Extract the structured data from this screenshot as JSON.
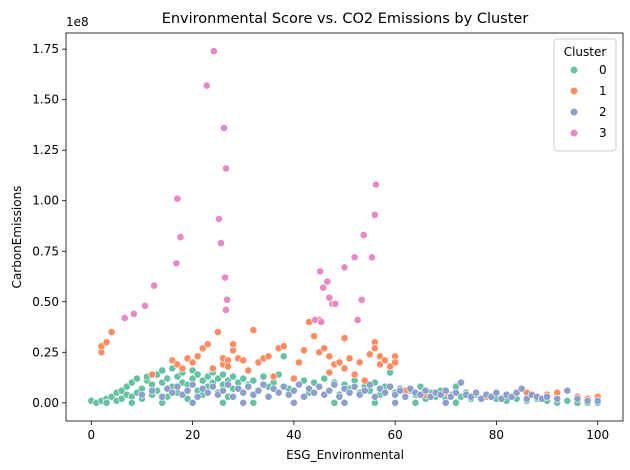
{
  "chart_data": {
    "type": "scatter",
    "title": "Environmental Score vs. CO2 Emissions by Cluster",
    "xlabel": "ESG_Environmental",
    "ylabel": "CarbonEmissions",
    "y_scale_label": "1e8",
    "xlim": [
      -5,
      105
    ],
    "ylim": [
      -0.09,
      1.83
    ],
    "y_multiplier": 100000000,
    "x_ticks": [
      0,
      20,
      40,
      60,
      80,
      100
    ],
    "x_tick_labels": [
      "0",
      "20",
      "40",
      "60",
      "80",
      "100"
    ],
    "y_ticks": [
      0.0,
      0.25,
      0.5,
      0.75,
      1.0,
      1.25,
      1.5,
      1.75
    ],
    "y_tick_labels": [
      "0.00",
      "0.25",
      "0.50",
      "0.75",
      "1.00",
      "1.25",
      "1.50",
      "1.75"
    ],
    "grid": false,
    "legend": {
      "title": "Cluster",
      "placement": "top-right"
    },
    "series": [
      {
        "name": "0",
        "color": "#66c2a5",
        "points": [
          [
            0,
            0.01
          ],
          [
            1,
            0.0
          ],
          [
            2,
            0.01
          ],
          [
            3,
            0.02
          ],
          [
            3,
            0.0
          ],
          [
            4,
            0.03
          ],
          [
            5,
            0.01
          ],
          [
            5,
            0.05
          ],
          [
            6,
            0.02
          ],
          [
            6,
            0.06
          ],
          [
            7,
            0.04
          ],
          [
            7,
            0.08
          ],
          [
            8,
            0.03
          ],
          [
            8,
            0.1
          ],
          [
            9,
            0.05
          ],
          [
            9,
            0.12
          ],
          [
            10,
            0.02
          ],
          [
            10,
            0.07
          ],
          [
            11,
            0.11
          ],
          [
            11,
            0.13
          ],
          [
            12,
            0.04
          ],
          [
            12,
            0.09
          ],
          [
            13,
            0.14
          ],
          [
            13,
            0.06
          ],
          [
            14,
            0.1
          ],
          [
            14,
            0.16
          ],
          [
            15,
            0.03
          ],
          [
            15,
            0.12
          ],
          [
            16,
            0.08
          ],
          [
            16,
            0.17
          ],
          [
            17,
            0.05
          ],
          [
            17,
            0.13
          ],
          [
            18,
            0.1
          ],
          [
            18,
            0.15
          ],
          [
            19,
            0.02
          ],
          [
            19,
            0.09
          ],
          [
            20,
            0.12
          ],
          [
            20,
            0.16
          ],
          [
            21,
            0.06
          ],
          [
            21,
            0.14
          ],
          [
            22,
            0.11
          ],
          [
            22,
            0.04
          ],
          [
            23,
            0.13
          ],
          [
            23,
            0.08
          ],
          [
            24,
            0.15
          ],
          [
            24,
            0.1
          ],
          [
            25,
            0.05
          ],
          [
            25,
            0.12
          ],
          [
            26,
            0.14
          ],
          [
            26,
            0.09
          ],
          [
            27,
            0.11
          ],
          [
            27,
            0.03
          ],
          [
            28,
            0.13
          ],
          [
            28,
            0.07
          ],
          [
            29,
            0.1
          ],
          [
            30,
            0.12
          ],
          [
            30,
            0.05
          ],
          [
            31,
            0.09
          ],
          [
            32,
            0.11
          ],
          [
            33,
            0.06
          ],
          [
            34,
            0.13
          ],
          [
            35,
            0.08
          ],
          [
            36,
            0.1
          ],
          [
            37,
            0.14
          ],
          [
            38,
            0.23
          ],
          [
            39,
            0.07
          ],
          [
            40,
            0.12
          ],
          [
            41,
            0.09
          ],
          [
            42,
            0.11
          ],
          [
            43,
            0.05
          ],
          [
            44,
            0.1
          ],
          [
            45,
            0.08
          ],
          [
            46,
            0.12
          ],
          [
            47,
            0.06
          ],
          [
            48,
            0.1
          ],
          [
            49,
            0.04
          ],
          [
            50,
            0.09
          ],
          [
            51,
            0.07
          ],
          [
            52,
            0.11
          ],
          [
            53,
            0.05
          ],
          [
            54,
            0.08
          ],
          [
            55,
            0.06
          ],
          [
            56,
            0.1
          ],
          [
            57,
            0.04
          ],
          [
            58,
            0.08
          ],
          [
            59,
            0.15
          ],
          [
            60,
            0.05
          ],
          [
            61,
            0.07
          ],
          [
            62,
            0.03
          ],
          [
            63,
            0.06
          ],
          [
            64,
            0.04
          ],
          [
            65,
            0.08
          ],
          [
            66,
            0.02
          ],
          [
            67,
            0.05
          ],
          [
            68,
            0.03
          ],
          [
            69,
            0.06
          ],
          [
            70,
            0.02
          ],
          [
            71,
            0.04
          ],
          [
            72,
            0.08
          ],
          [
            73,
            0.03
          ],
          [
            74,
            0.05
          ],
          [
            75,
            0.02
          ],
          [
            76,
            0.04
          ],
          [
            78,
            0.03
          ],
          [
            80,
            0.02
          ],
          [
            82,
            0.01
          ],
          [
            84,
            0.02
          ],
          [
            86,
            0.01
          ],
          [
            88,
            0.02
          ],
          [
            90,
            0.01
          ],
          [
            92,
            0.0
          ],
          [
            94,
            0.01
          ],
          [
            96,
            0.0
          ],
          [
            98,
            0.0
          ],
          [
            100,
            0.0
          ],
          [
            8,
            0.0
          ],
          [
            14,
            0.0
          ],
          [
            20,
            0.0
          ],
          [
            26,
            0.0
          ],
          [
            32,
            0.0
          ],
          [
            40,
            0.0
          ],
          [
            48,
            0.0
          ],
          [
            56,
            0.0
          ],
          [
            64,
            0.0
          ],
          [
            72,
            0.0
          ]
        ]
      },
      {
        "name": "1",
        "color": "#fc8d62",
        "points": [
          [
            2,
            0.25
          ],
          [
            2,
            0.28
          ],
          [
            3,
            0.3
          ],
          [
            4,
            0.35
          ],
          [
            12,
            0.14
          ],
          [
            16,
            0.21
          ],
          [
            17,
            0.19
          ],
          [
            18,
            0.17
          ],
          [
            19,
            0.22
          ],
          [
            20,
            0.2
          ],
          [
            21,
            0.23
          ],
          [
            22,
            0.27
          ],
          [
            23,
            0.29
          ],
          [
            24,
            0.17
          ],
          [
            25,
            0.35
          ],
          [
            26,
            0.19
          ],
          [
            26,
            0.22
          ],
          [
            27,
            0.21
          ],
          [
            27,
            0.18
          ],
          [
            28,
            0.26
          ],
          [
            28,
            0.29
          ],
          [
            29,
            0.22
          ],
          [
            30,
            0.21
          ],
          [
            31,
            0.16
          ],
          [
            32,
            0.36
          ],
          [
            33,
            0.2
          ],
          [
            34,
            0.22
          ],
          [
            35,
            0.23
          ],
          [
            36,
            0.13
          ],
          [
            37,
            0.27
          ],
          [
            38,
            0.28
          ],
          [
            40,
            0.12
          ],
          [
            41,
            0.2
          ],
          [
            42,
            0.26
          ],
          [
            43,
            0.4
          ],
          [
            44,
            0.33
          ],
          [
            45,
            0.41
          ],
          [
            45,
            0.25
          ],
          [
            46,
            0.27
          ],
          [
            47,
            0.23
          ],
          [
            47,
            0.15
          ],
          [
            48,
            0.19
          ],
          [
            49,
            0.2
          ],
          [
            50,
            0.17
          ],
          [
            50,
            0.32
          ],
          [
            51,
            0.22
          ],
          [
            52,
            0.14
          ],
          [
            53,
            0.2
          ],
          [
            54,
            0.11
          ],
          [
            55,
            0.24
          ],
          [
            56,
            0.3
          ],
          [
            56,
            0.27
          ],
          [
            57,
            0.23
          ],
          [
            57,
            0.19
          ],
          [
            58,
            0.21
          ],
          [
            59,
            0.18
          ],
          [
            60,
            0.23
          ],
          [
            60,
            0.2
          ],
          [
            62,
            0.06
          ],
          [
            66,
            0.04
          ],
          [
            70,
            0.05
          ],
          [
            74,
            0.04
          ],
          [
            78,
            0.03
          ],
          [
            82,
            0.04
          ],
          [
            86,
            0.05
          ],
          [
            88,
            0.03
          ],
          [
            90,
            0.04
          ],
          [
            92,
            0.05
          ],
          [
            96,
            0.03
          ],
          [
            98,
            0.02
          ],
          [
            100,
            0.03
          ]
        ]
      },
      {
        "name": "2",
        "color": "#8da0cb",
        "points": [
          [
            10,
            0.04
          ],
          [
            12,
            0.06
          ],
          [
            14,
            0.03
          ],
          [
            15,
            0.07
          ],
          [
            16,
            0.05
          ],
          [
            17,
            0.08
          ],
          [
            18,
            0.04
          ],
          [
            19,
            0.06
          ],
          [
            20,
            0.09
          ],
          [
            21,
            0.03
          ],
          [
            22,
            0.07
          ],
          [
            23,
            0.05
          ],
          [
            24,
            0.08
          ],
          [
            25,
            0.04
          ],
          [
            26,
            0.06
          ],
          [
            27,
            0.09
          ],
          [
            28,
            0.03
          ],
          [
            29,
            0.07
          ],
          [
            30,
            0.05
          ],
          [
            31,
            0.08
          ],
          [
            32,
            0.04
          ],
          [
            33,
            0.06
          ],
          [
            34,
            0.09
          ],
          [
            35,
            0.03
          ],
          [
            36,
            0.07
          ],
          [
            37,
            0.05
          ],
          [
            38,
            0.08
          ],
          [
            39,
            0.04
          ],
          [
            40,
            0.06
          ],
          [
            41,
            0.09
          ],
          [
            42,
            0.03
          ],
          [
            43,
            0.07
          ],
          [
            44,
            0.05
          ],
          [
            45,
            0.08
          ],
          [
            46,
            0.04
          ],
          [
            47,
            0.06
          ],
          [
            48,
            0.09
          ],
          [
            49,
            0.03
          ],
          [
            50,
            0.07
          ],
          [
            51,
            0.05
          ],
          [
            52,
            0.08
          ],
          [
            53,
            0.04
          ],
          [
            54,
            0.06
          ],
          [
            55,
            0.09
          ],
          [
            56,
            0.03
          ],
          [
            57,
            0.07
          ],
          [
            58,
            0.05
          ],
          [
            59,
            0.08
          ],
          [
            60,
            0.04
          ],
          [
            61,
            0.06
          ],
          [
            62,
            0.03
          ],
          [
            63,
            0.07
          ],
          [
            64,
            0.05
          ],
          [
            65,
            0.04
          ],
          [
            66,
            0.06
          ],
          [
            67,
            0.03
          ],
          [
            68,
            0.05
          ],
          [
            69,
            0.04
          ],
          [
            70,
            0.06
          ],
          [
            71,
            0.03
          ],
          [
            72,
            0.05
          ],
          [
            73,
            0.1
          ],
          [
            74,
            0.04
          ],
          [
            75,
            0.03
          ],
          [
            76,
            0.05
          ],
          [
            77,
            0.02
          ],
          [
            78,
            0.04
          ],
          [
            79,
            0.03
          ],
          [
            80,
            0.05
          ],
          [
            81,
            0.02
          ],
          [
            82,
            0.04
          ],
          [
            83,
            0.03
          ],
          [
            84,
            0.05
          ],
          [
            85,
            0.07
          ],
          [
            86,
            0.02
          ],
          [
            87,
            0.04
          ],
          [
            88,
            0.03
          ],
          [
            89,
            0.02
          ],
          [
            90,
            0.03
          ],
          [
            92,
            0.02
          ],
          [
            94,
            0.06
          ],
          [
            96,
            0.02
          ],
          [
            98,
            0.01
          ],
          [
            100,
            0.01
          ],
          [
            20,
            0.0
          ],
          [
            30,
            0.0
          ],
          [
            40,
            0.0
          ],
          [
            50,
            0.0
          ],
          [
            60,
            0.0
          ],
          [
            70,
            0.0
          ]
        ]
      },
      {
        "name": "3",
        "color": "#e78ac3",
        "points": [
          [
            24.2,
            1.74
          ],
          [
            22.8,
            1.57
          ],
          [
            26.2,
            1.36
          ],
          [
            26.6,
            1.16
          ],
          [
            17.0,
            1.01
          ],
          [
            56.2,
            1.08
          ],
          [
            56.0,
            0.93
          ],
          [
            25.2,
            0.91
          ],
          [
            53.8,
            0.83
          ],
          [
            17.6,
            0.82
          ],
          [
            25.6,
            0.79
          ],
          [
            55.4,
            0.72
          ],
          [
            52.0,
            0.72
          ],
          [
            16.8,
            0.69
          ],
          [
            50.0,
            0.67
          ],
          [
            45.2,
            0.65
          ],
          [
            26.4,
            0.62
          ],
          [
            46.6,
            0.6
          ],
          [
            12.4,
            0.58
          ],
          [
            45.8,
            0.57
          ],
          [
            47.0,
            0.52
          ],
          [
            53.4,
            0.51
          ],
          [
            26.8,
            0.51
          ],
          [
            47.6,
            0.49
          ],
          [
            48.2,
            0.49
          ],
          [
            10.6,
            0.48
          ],
          [
            26.6,
            0.46
          ],
          [
            8.4,
            0.44
          ],
          [
            6.6,
            0.42
          ],
          [
            44.2,
            0.41
          ],
          [
            52.6,
            0.41
          ],
          [
            45.4,
            0.4
          ]
        ]
      }
    ]
  }
}
